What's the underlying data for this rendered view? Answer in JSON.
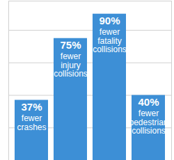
{
  "chart_data": {
    "type": "bar",
    "categories": [
      "fewer\ncrashes",
      "fewer\ninjury\ncollisions",
      "fewer\nfatality\ncollisions",
      "fewer\npedestrian\ncollisions"
    ],
    "values": [
      37,
      75,
      90,
      40
    ],
    "value_labels": [
      "37%",
      "75%",
      "90%",
      "40%"
    ],
    "data_labels": true,
    "color": "#3d8fd6",
    "ylim": [
      0,
      98
    ],
    "yticks": [
      0,
      20,
      40,
      60,
      80
    ],
    "grid": true,
    "tick_labels": false
  }
}
